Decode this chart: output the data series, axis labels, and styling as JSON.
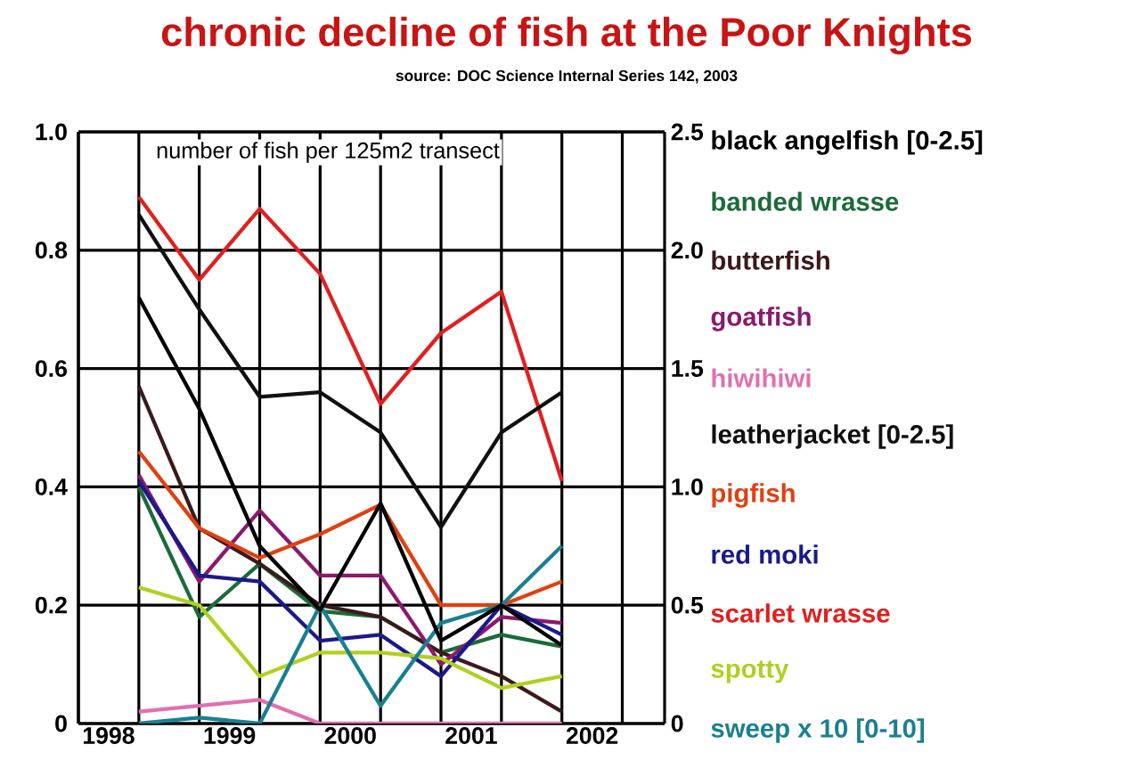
{
  "chart_data": {
    "type": "line",
    "title": "chronic decline of fish at the Poor Knights",
    "subtitle": "source: DOC Science Internal Series 142, 2003",
    "ylabel": "number of fish per 125m2 transect",
    "x": [
      1998.25,
      1998.75,
      1999.25,
      1999.75,
      2000.25,
      2000.75,
      2001.25,
      2001.75
    ],
    "xlim": [
      1997.75,
      2002.6
    ],
    "xticks": [
      1998,
      1999,
      2000,
      2001,
      2002
    ],
    "ylim": [
      0,
      1.0
    ],
    "yticks": [
      {
        "value": 0,
        "label": "0"
      },
      {
        "value": 0.2,
        "label": "0.2"
      },
      {
        "value": 0.4,
        "label": "0.4"
      },
      {
        "value": 0.6,
        "label": "0.6"
      },
      {
        "value": 0.8,
        "label": "0.8"
      },
      {
        "value": 1.0,
        "label": "1.0"
      }
    ],
    "y2lim": [
      0,
      2.5
    ],
    "y2ticks": [
      {
        "value": 0,
        "label": "0"
      },
      {
        "value": 0.5,
        "label": "0.5"
      },
      {
        "value": 1.0,
        "label": "1.0"
      },
      {
        "value": 1.5,
        "label": "1.5"
      },
      {
        "value": 2.0,
        "label": "2.0"
      },
      {
        "value": 2.5,
        "label": "2.5"
      }
    ],
    "grid": true,
    "legend": "right",
    "marker": "none",
    "line_style": "solid",
    "series": [
      {
        "name": "black angelfish [0-2.5]",
        "color": "#000000",
        "axis": "y2",
        "values": [
          1.8,
          1.33,
          0.75,
          0.48,
          0.93,
          0.35,
          0.5,
          0.33
        ]
      },
      {
        "name": "banded wrasse",
        "color": "#1a6b3a",
        "values": [
          0.4,
          0.18,
          0.27,
          0.19,
          0.18,
          0.12,
          0.15,
          0.13
        ]
      },
      {
        "name": "butterfish",
        "color": "#3a1a1a",
        "values": [
          0.57,
          0.33,
          0.27,
          0.2,
          0.18,
          0.12,
          0.08,
          0.02
        ]
      },
      {
        "name": "goatfish",
        "color": "#8b1a6b",
        "values": [
          0.42,
          0.24,
          0.36,
          0.25,
          0.25,
          0.1,
          0.18,
          0.17
        ]
      },
      {
        "name": "hiwihiwi",
        "color": "#e070b0",
        "values": [
          0.02,
          0.03,
          0.04,
          0.0,
          0.0,
          0.0,
          0.0,
          0.0
        ]
      },
      {
        "name": "leatherjacket [0-2.5]",
        "color": "#101010",
        "axis": "y2",
        "values": [
          2.15,
          1.75,
          1.38,
          1.4,
          1.23,
          0.83,
          1.23,
          1.4
        ]
      },
      {
        "name": "pigfish",
        "color": "#e04010",
        "values": [
          0.46,
          0.33,
          0.28,
          0.32,
          0.37,
          0.2,
          0.2,
          0.24
        ]
      },
      {
        "name": "red moki",
        "color": "#1a1a8b",
        "values": [
          0.41,
          0.25,
          0.24,
          0.14,
          0.15,
          0.08,
          0.2,
          0.15
        ]
      },
      {
        "name": "scarlet wrasse",
        "color": "#e02020",
        "values": [
          0.89,
          0.75,
          0.87,
          0.76,
          0.54,
          0.66,
          0.73,
          0.41
        ]
      },
      {
        "name": "spotty",
        "color": "#b0d020",
        "values": [
          0.23,
          0.2,
          0.08,
          0.12,
          0.12,
          0.11,
          0.06,
          0.08
        ]
      },
      {
        "name": "sweep x 10 [0-10]",
        "color": "#1a8090",
        "values": [
          0.0,
          0.01,
          0.0,
          0.2,
          0.03,
          0.17,
          0.2,
          0.3
        ]
      }
    ]
  }
}
